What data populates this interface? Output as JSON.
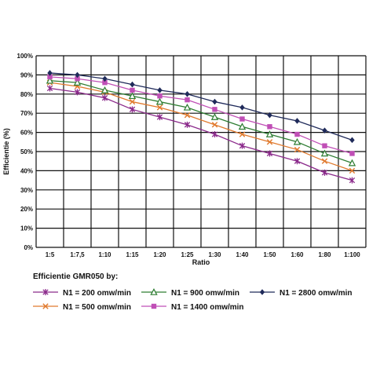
{
  "chart_data": {
    "type": "line",
    "xlabel": "Ratio",
    "ylabel": "Efficientie (%)",
    "categories": [
      "1:5",
      "1:7,5",
      "1:10",
      "1:15",
      "1:20",
      "1:25",
      "1:30",
      "1:40",
      "1:50",
      "1:60",
      "1:80",
      "1:100"
    ],
    "y_ticks": [
      "0%",
      "10%",
      "20%",
      "30%",
      "40%",
      "50%",
      "60%",
      "70%",
      "80%",
      "90%",
      "100%"
    ],
    "ylim": [
      0,
      100
    ],
    "grid": true,
    "legend_title": "Efficientie GMR050 by:",
    "legend_position": "bottom",
    "series": [
      {
        "name": "N1 = 200 omw/min",
        "color": "#8b2a8b",
        "marker": "star",
        "values": [
          83,
          81,
          78,
          72,
          68,
          64,
          59,
          53,
          49,
          45,
          39,
          35
        ]
      },
      {
        "name": "N1 = 500 omw/min",
        "color": "#e07a2e",
        "marker": "x",
        "values": [
          86,
          84,
          81,
          76,
          73,
          69,
          64,
          59,
          55,
          51,
          45,
          40
        ]
      },
      {
        "name": "N1 = 900 omw/min",
        "color": "#2e7d32",
        "marker": "triangle",
        "values": [
          87,
          86,
          82,
          79,
          76,
          73,
          68,
          63,
          59,
          55,
          49,
          44
        ]
      },
      {
        "name": "N1 = 1400 omw/min",
        "color": "#c04fb6",
        "marker": "square",
        "values": [
          89,
          88,
          86,
          82,
          79,
          77,
          72,
          67,
          63,
          59,
          53,
          49
        ]
      },
      {
        "name": "N1 = 2800 omw/min",
        "color": "#1f2a5a",
        "marker": "diamond",
        "values": [
          91,
          90,
          88,
          85,
          82,
          80,
          76,
          73,
          69,
          66,
          61,
          56
        ]
      }
    ]
  }
}
